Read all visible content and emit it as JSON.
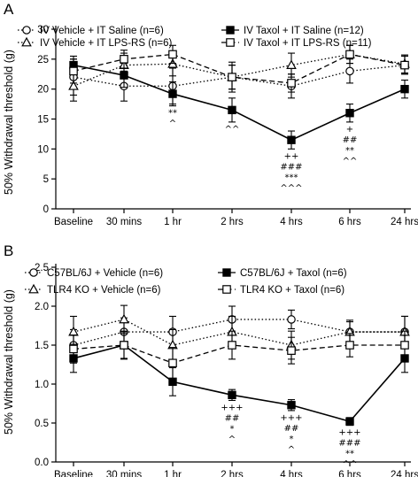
{
  "chart_data": [
    {
      "panel": "A",
      "type": "line",
      "categories": [
        "Baseline",
        "30 mins",
        "1 hr",
        "2 hrs",
        "4 hrs",
        "6 hrs",
        "24 hrs"
      ],
      "ylabel": "50% Withdrawal threshold (g)",
      "yticks": [
        "0",
        "5",
        "10",
        "15",
        "20",
        "25",
        "30"
      ],
      "ylim": [
        0,
        30
      ],
      "grid": false,
      "legend_position": "top",
      "series": [
        {
          "name": "IV Vehicle + IT Saline (n=6)",
          "marker": "circle-open",
          "line": "dotted",
          "values": [
            22.0,
            20.5,
            20.5,
            22.0,
            20.5,
            23.0,
            24.0
          ],
          "errors": [
            3.0,
            2.5,
            3.0,
            2.5,
            2.0,
            2.0,
            1.5
          ]
        },
        {
          "name": "IV Taxol + IT Saline (n=12)",
          "marker": "square-filled",
          "line": "solid",
          "values": [
            24.0,
            22.3,
            19.2,
            16.5,
            11.5,
            16.0,
            20.0
          ],
          "errors": [
            1.5,
            2.0,
            2.0,
            2.0,
            1.5,
            1.5,
            1.5
          ]
        },
        {
          "name": "IV Vehicle + IT LPS-RS (n=6)",
          "marker": "triangle-open",
          "line": "dotted",
          "values": [
            20.5,
            24.0,
            24.2,
            22.0,
            24.0,
            25.8,
            24.2
          ],
          "errors": [
            2.5,
            2.0,
            2.0,
            2.0,
            2.0,
            1.5,
            1.5
          ]
        },
        {
          "name": "IV Taxol + IT LPS-RS (n=11)",
          "marker": "square-open",
          "line": "dashed",
          "values": [
            23.0,
            25.0,
            25.8,
            22.0,
            21.0,
            25.8,
            24.0
          ],
          "errors": [
            2.0,
            1.5,
            1.5,
            2.0,
            1.5,
            1.5,
            1.5
          ]
        }
      ],
      "annotations": [
        {
          "category": "1 hr",
          "lines": [
            "**",
            "^"
          ]
        },
        {
          "category": "2 hrs",
          "lines": [
            "^^"
          ]
        },
        {
          "category": "4 hrs",
          "lines": [
            "++",
            "###",
            "***",
            "^^^"
          ]
        },
        {
          "category": "6 hrs",
          "lines": [
            "+",
            "##",
            "**",
            "^^"
          ]
        }
      ]
    },
    {
      "panel": "B",
      "type": "line",
      "categories": [
        "Baseline",
        "30 mins",
        "1 hr",
        "2 hrs",
        "4 hrs",
        "6 hrs",
        "24 hrs"
      ],
      "ylabel": "50% Withdrawal threshold (g)",
      "yticks": [
        "0.0",
        "0.5",
        "1.0",
        "1.5",
        "2.0",
        "2.5"
      ],
      "ylim": [
        0,
        2.5
      ],
      "grid": false,
      "legend_position": "top",
      "series": [
        {
          "name": "C57BL/6J + Vehicle (n=6)",
          "marker": "circle-open",
          "line": "dotted",
          "values": [
            1.5,
            1.67,
            1.67,
            1.83,
            1.83,
            1.67,
            1.67
          ],
          "errors": [
            0.2,
            0.18,
            0.2,
            0.17,
            0.12,
            0.13,
            0.2
          ]
        },
        {
          "name": "C57BL/6J + Taxol (n=6)",
          "marker": "square-filled",
          "line": "solid",
          "values": [
            1.33,
            1.5,
            1.03,
            0.86,
            0.73,
            0.52,
            1.33
          ],
          "errors": [
            0.18,
            0.18,
            0.18,
            0.07,
            0.07,
            0.05,
            0.18
          ]
        },
        {
          "name": "TLR4 KO + Vehicle (n=6)",
          "marker": "triangle-open",
          "line": "dotted",
          "values": [
            1.67,
            1.83,
            1.5,
            1.67,
            1.5,
            1.67,
            1.67
          ],
          "errors": [
            0.2,
            0.18,
            0.2,
            0.2,
            0.18,
            0.15,
            0.2
          ]
        },
        {
          "name": "TLR4 KO + Taxol (n=6)",
          "marker": "square-open",
          "line": "dashed",
          "values": [
            1.45,
            1.5,
            1.27,
            1.5,
            1.43,
            1.5,
            1.5
          ],
          "errors": [
            0.18,
            0.17,
            0.2,
            0.18,
            0.17,
            0.15,
            0.18
          ]
        }
      ],
      "annotations": [
        {
          "category": "2 hrs",
          "lines": [
            "+++",
            "##",
            "*",
            "^"
          ]
        },
        {
          "category": "4 hrs",
          "lines": [
            "+++",
            "##",
            "*",
            "^"
          ]
        },
        {
          "category": "6 hrs",
          "lines": [
            "+++",
            "###",
            "**",
            "^^"
          ]
        }
      ]
    }
  ]
}
